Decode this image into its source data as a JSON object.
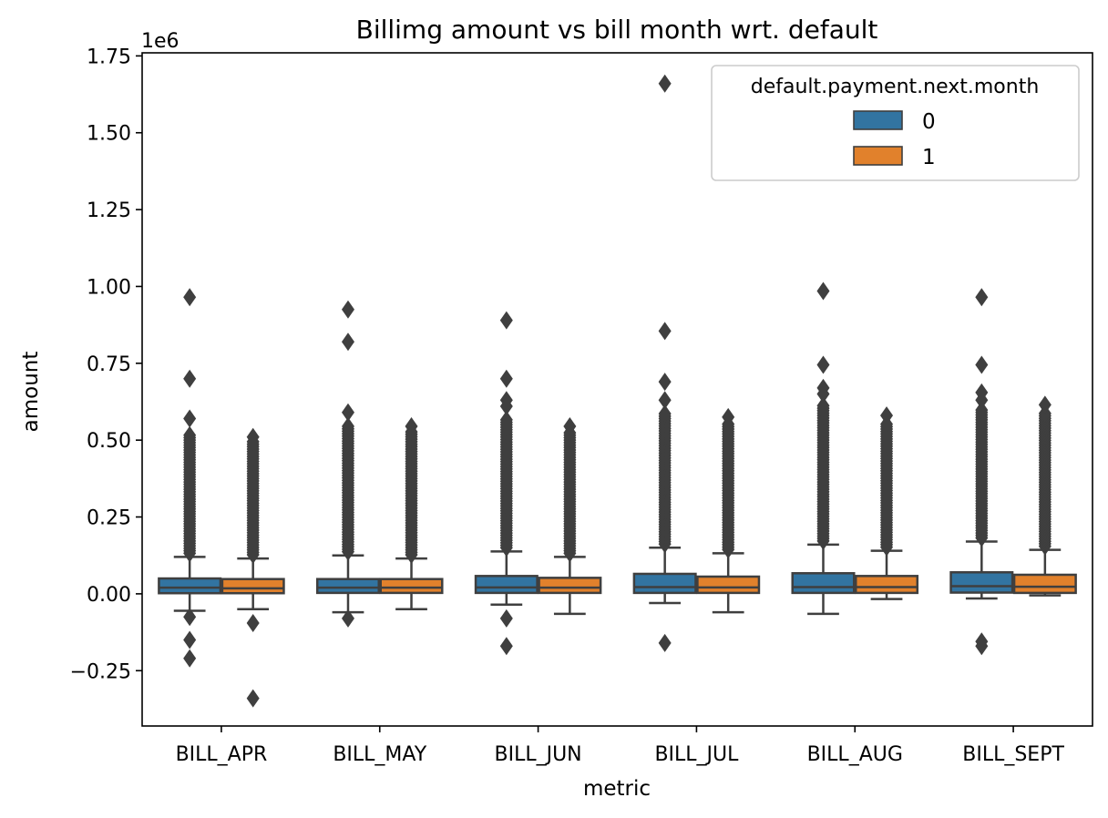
{
  "chart_data": {
    "type": "box",
    "title": "Billimg amount vs bill month wrt. default",
    "xlabel": "metric",
    "ylabel": "amount",
    "y_scale_label": "1e6",
    "ylim": [
      -0.43,
      1.76
    ],
    "yticks": [
      -0.25,
      0.0,
      0.25,
      0.5,
      0.75,
      1.0,
      1.25,
      1.5,
      1.75
    ],
    "ytick_labels": [
      "−0.25",
      "0.00",
      "0.25",
      "0.50",
      "0.75",
      "1.00",
      "1.25",
      "1.50",
      "1.75"
    ],
    "categories": [
      "BILL_APR",
      "BILL_MAY",
      "BILL_JUN",
      "BILL_JUL",
      "BILL_AUG",
      "BILL_SEPT"
    ],
    "legend": {
      "title": "default.payment.next.month",
      "position": "top-right"
    },
    "series": [
      {
        "name": "0",
        "color": "#3274a1",
        "boxes": [
          {
            "whisker_low": -0.055,
            "q1": 0.002,
            "median": 0.02,
            "q3": 0.05,
            "whisker_high": 0.12,
            "outliers_high_dense_to": 0.52,
            "outliers": [
              0.57,
              0.7,
              0.965,
              -0.075,
              -0.15,
              -0.21
            ]
          },
          {
            "whisker_low": -0.06,
            "q1": 0.003,
            "median": 0.02,
            "q3": 0.048,
            "whisker_high": 0.125,
            "outliers_high_dense_to": 0.55,
            "outliers": [
              0.59,
              0.82,
              0.925,
              -0.08
            ]
          },
          {
            "whisker_low": -0.035,
            "q1": 0.003,
            "median": 0.021,
            "q3": 0.058,
            "whisker_high": 0.138,
            "outliers_high_dense_to": 0.57,
            "outliers": [
              0.61,
              0.63,
              0.7,
              0.89,
              -0.08,
              -0.17
            ]
          },
          {
            "whisker_low": -0.03,
            "q1": 0.003,
            "median": 0.022,
            "q3": 0.065,
            "whisker_high": 0.15,
            "outliers_high_dense_to": 0.59,
            "outliers": [
              0.63,
              0.69,
              0.855,
              1.66,
              -0.16
            ]
          },
          {
            "whisker_low": -0.065,
            "q1": 0.003,
            "median": 0.022,
            "q3": 0.067,
            "whisker_high": 0.16,
            "outliers_high_dense_to": 0.62,
            "outliers": [
              0.65,
              0.67,
              0.745,
              0.985
            ]
          },
          {
            "whisker_low": -0.015,
            "q1": 0.004,
            "median": 0.025,
            "q3": 0.07,
            "whisker_high": 0.17,
            "outliers_high_dense_to": 0.6,
            "outliers": [
              0.63,
              0.655,
              0.745,
              0.965,
              -0.155,
              -0.17
            ]
          }
        ]
      },
      {
        "name": "1",
        "color": "#e1812c",
        "boxes": [
          {
            "whisker_low": -0.05,
            "q1": 0.002,
            "median": 0.018,
            "q3": 0.048,
            "whisker_high": 0.115,
            "outliers_high_dense_to": 0.5,
            "outliers": [
              0.51,
              -0.095,
              -0.34
            ]
          },
          {
            "whisker_low": -0.05,
            "q1": 0.003,
            "median": 0.02,
            "q3": 0.048,
            "whisker_high": 0.115,
            "outliers_high_dense_to": 0.53,
            "outliers": [
              0.545
            ]
          },
          {
            "whisker_low": -0.065,
            "q1": 0.003,
            "median": 0.02,
            "q3": 0.052,
            "whisker_high": 0.12,
            "outliers_high_dense_to": 0.53,
            "outliers": [
              0.545
            ]
          },
          {
            "whisker_low": -0.06,
            "q1": 0.003,
            "median": 0.021,
            "q3": 0.056,
            "whisker_high": 0.132,
            "outliers_high_dense_to": 0.56,
            "outliers": [
              0.575
            ]
          },
          {
            "whisker_low": -0.017,
            "q1": 0.003,
            "median": 0.022,
            "q3": 0.058,
            "whisker_high": 0.14,
            "outliers_high_dense_to": 0.56,
            "outliers": [
              0.58
            ]
          },
          {
            "whisker_low": -0.005,
            "q1": 0.003,
            "median": 0.023,
            "q3": 0.062,
            "whisker_high": 0.143,
            "outliers_high_dense_to": 0.59,
            "outliers": [
              0.615
            ]
          }
        ]
      }
    ]
  }
}
